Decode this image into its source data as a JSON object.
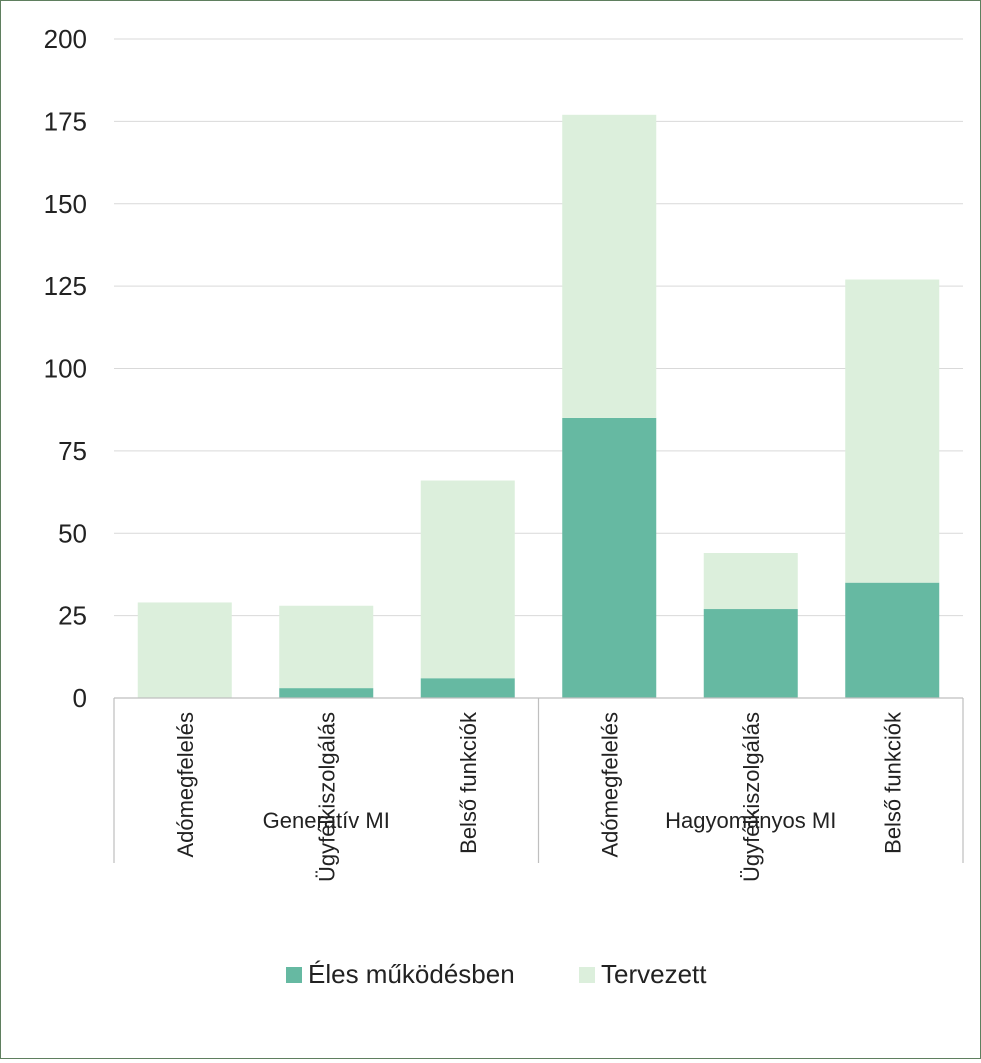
{
  "chart_data": {
    "type": "bar",
    "stacked": true,
    "title": "",
    "xlabel": "",
    "ylabel": "",
    "ylim": [
      0,
      200
    ],
    "yticks": [
      0,
      25,
      50,
      75,
      100,
      125,
      150,
      175,
      200
    ],
    "grid": true,
    "legend_position": "bottom",
    "groups": [
      {
        "label": "Generatív MI",
        "categories": [
          "Adómegfelelés",
          "Ügyfélkiszolgálás",
          "Belső funkciók"
        ]
      },
      {
        "label": "Hagyományos MI",
        "categories": [
          "Adómegfelelés",
          "Ügyfélkiszolgálás",
          "Belső funkciók"
        ]
      }
    ],
    "categories": [
      "Adómegfelelés",
      "Ügyfélkiszolgálás",
      "Belső funkciók",
      "Adómegfelelés",
      "Ügyfélkiszolgálás",
      "Belső funkciók"
    ],
    "series": [
      {
        "name": "Éles működésben",
        "color": "#66b9a2",
        "values": [
          0,
          3,
          6,
          85,
          27,
          35
        ]
      },
      {
        "name": "Tervezett",
        "color": "#dcefdc",
        "values": [
          29,
          25,
          60,
          92,
          17,
          92
        ]
      }
    ]
  }
}
